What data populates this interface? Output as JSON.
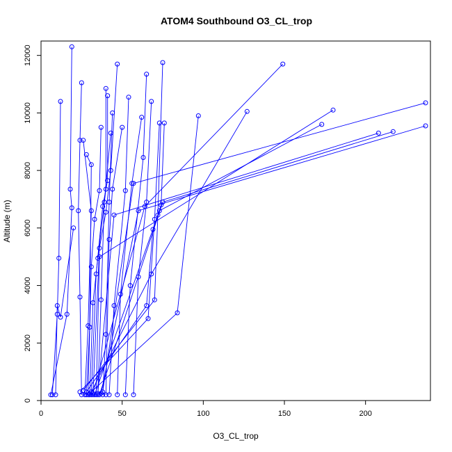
{
  "chart_data": {
    "type": "line",
    "title": "ATOM4 Southbound O3_CL_trop",
    "xlabel": "O3_CL_trop",
    "ylabel": "Altitude (m)",
    "xlim": [
      0,
      240
    ],
    "ylim": [
      0,
      12500
    ],
    "x_ticks": [
      0,
      50,
      100,
      150,
      200
    ],
    "y_ticks": [
      0,
      2000,
      4000,
      6000,
      8000,
      10000,
      12000
    ],
    "grid": false,
    "legend": "none",
    "series_color": "#0000ff",
    "profiles": [
      {
        "x": [
          6,
          16,
          19,
          18,
          19
        ],
        "y": [
          200,
          3000,
          6700,
          7350,
          12300
        ]
      },
      {
        "x": [
          7,
          10,
          11,
          12
        ],
        "y": [
          200,
          3000,
          4950,
          10400
        ]
      },
      {
        "x": [
          9,
          10,
          12,
          20
        ],
        "y": [
          200,
          3300,
          2900,
          6000
        ]
      },
      {
        "x": [
          25,
          24,
          23,
          24,
          25
        ],
        "y": [
          200,
          3600,
          6600,
          9050,
          11050
        ]
      },
      {
        "x": [
          27,
          29,
          31,
          26
        ],
        "y": [
          200,
          2600,
          6600,
          9050
        ]
      },
      {
        "x": [
          28,
          30,
          31,
          28
        ],
        "y": [
          200,
          2550,
          8200,
          8550
        ]
      },
      {
        "x": [
          29,
          31,
          33,
          36,
          37
        ],
        "y": [
          200,
          4650,
          6300,
          7300,
          9500
        ]
      },
      {
        "x": [
          30,
          32,
          35,
          40,
          40
        ],
        "y": [
          200,
          3400,
          4950,
          7350,
          10850
        ]
      },
      {
        "x": [
          31,
          34,
          38,
          41,
          41
        ],
        "y": [
          200,
          4400,
          6750,
          7650,
          10600
        ]
      },
      {
        "x": [
          32,
          36,
          40,
          43,
          47
        ],
        "y": [
          200,
          5300,
          6550,
          8000,
          11700
        ]
      },
      {
        "x": [
          35,
          37,
          39,
          43
        ],
        "y": [
          200,
          3500,
          6900,
          9300
        ]
      },
      {
        "x": [
          38,
          40,
          42,
          44
        ],
        "y": [
          200,
          2300,
          6900,
          10000
        ]
      },
      {
        "x": [
          40,
          42,
          44,
          50
        ],
        "y": [
          200,
          5600,
          7350,
          9500
        ]
      },
      {
        "x": [
          42,
          45,
          52,
          54
        ],
        "y": [
          200,
          3300,
          7300,
          10550
        ]
      },
      {
        "x": [
          47,
          49,
          56,
          62
        ],
        "y": [
          200,
          3700,
          7550,
          9850
        ]
      },
      {
        "x": [
          52,
          55,
          63,
          65
        ],
        "y": [
          200,
          4000,
          8450,
          11350
        ]
      },
      {
        "x": [
          57,
          60,
          65,
          68
        ],
        "y": [
          200,
          4300,
          6900,
          10400
        ]
      },
      {
        "x": [
          24,
          66,
          70,
          73
        ],
        "y": [
          300,
          2850,
          6300,
          9650
        ]
      },
      {
        "x": [
          26,
          70,
          72,
          75
        ],
        "y": [
          350,
          3500,
          6450,
          11750
        ]
      },
      {
        "x": [
          28,
          65,
          69,
          74,
          76
        ],
        "y": [
          300,
          3300,
          5950,
          6800,
          9650
        ]
      },
      {
        "x": [
          30,
          84,
          97
        ],
        "y": [
          250,
          3050,
          9900
        ]
      },
      {
        "x": [
          31,
          68,
          127
        ],
        "y": [
          300,
          4400,
          10050
        ]
      },
      {
        "x": [
          32,
          64,
          149
        ],
        "y": [
          250,
          6750,
          11700
        ]
      },
      {
        "x": [
          33,
          73,
          173
        ],
        "y": [
          200,
          6600,
          9600
        ]
      },
      {
        "x": [
          34,
          36,
          180
        ],
        "y": [
          200,
          5000,
          10100
        ]
      },
      {
        "x": [
          35,
          45,
          208
        ],
        "y": [
          250,
          6450,
          9300
        ]
      },
      {
        "x": [
          36,
          75,
          217
        ],
        "y": [
          200,
          6900,
          9350
        ]
      },
      {
        "x": [
          37,
          60,
          237
        ],
        "y": [
          250,
          6600,
          9550
        ]
      },
      {
        "x": [
          38,
          57,
          237
        ],
        "y": [
          300,
          7550,
          10350
        ]
      }
    ]
  }
}
